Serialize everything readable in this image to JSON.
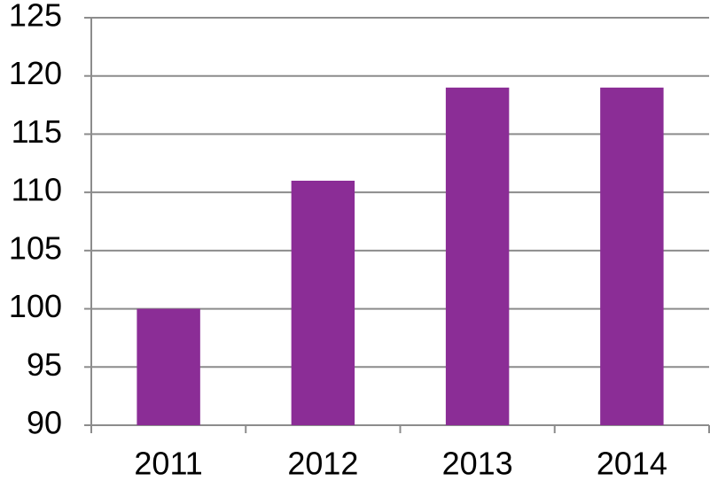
{
  "chart_data": {
    "type": "bar",
    "categories": [
      "2011",
      "2012",
      "2013",
      "2014"
    ],
    "values": [
      100,
      111,
      119,
      119
    ],
    "color": "#8b2d96",
    "ylim": [
      90,
      125
    ],
    "yticks": [
      90,
      95,
      100,
      105,
      110,
      115,
      120,
      125
    ],
    "grid": true
  }
}
